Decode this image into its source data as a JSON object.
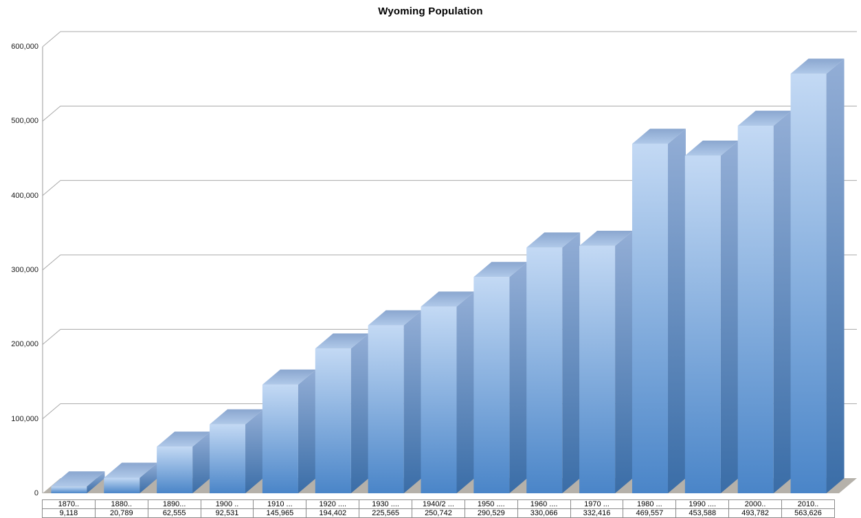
{
  "chart_data": {
    "type": "bar",
    "style": "3d-column",
    "title": "Wyoming Population",
    "categories": [
      "1870..",
      "1880..",
      "1890...",
      "1900 ..",
      "1910 ...",
      "1920 ....",
      "1930 ....",
      "1940/2 ...",
      "1950 ....",
      "1960 ....",
      "1970 ...",
      "1980 ...",
      "1990 ....",
      "2000..",
      "2010.."
    ],
    "values": [
      9118,
      20789,
      62555,
      92531,
      145965,
      194402,
      225565,
      250742,
      290529,
      330066,
      332416,
      469557,
      453588,
      493782,
      563626
    ],
    "value_labels": [
      "9,118",
      "20,789",
      "62,555",
      "92,531",
      "145,965",
      "194,402",
      "225,565",
      "250,742",
      "290,529",
      "330,066",
      "332,416",
      "469,557",
      "453,588",
      "493,782",
      "563,626"
    ],
    "xlabel": "",
    "ylabel": "",
    "ylim": [
      0,
      600000
    ],
    "ytick_interval": 100000,
    "ytick_labels": [
      "0",
      "100,000",
      "200,000",
      "300,000",
      "400,000",
      "500,000",
      "600,000"
    ],
    "grid": true,
    "legend": false,
    "data_table_shown": true,
    "colors": {
      "bar_front_top": "#c3d9f4",
      "bar_front_bottom": "#4a85c8",
      "bar_side_top": "#93aed6",
      "bar_side_bottom": "#3a6da7",
      "bar_top_back": "#8aa6cf",
      "bar_top_front": "#b0c9e9",
      "floor": "#b5b1aa",
      "gridline": "#a8a8a8",
      "axis": "#9a9a9a",
      "table_border": "#8a8a8a",
      "text": "#000000",
      "background": "#ffffff"
    }
  }
}
